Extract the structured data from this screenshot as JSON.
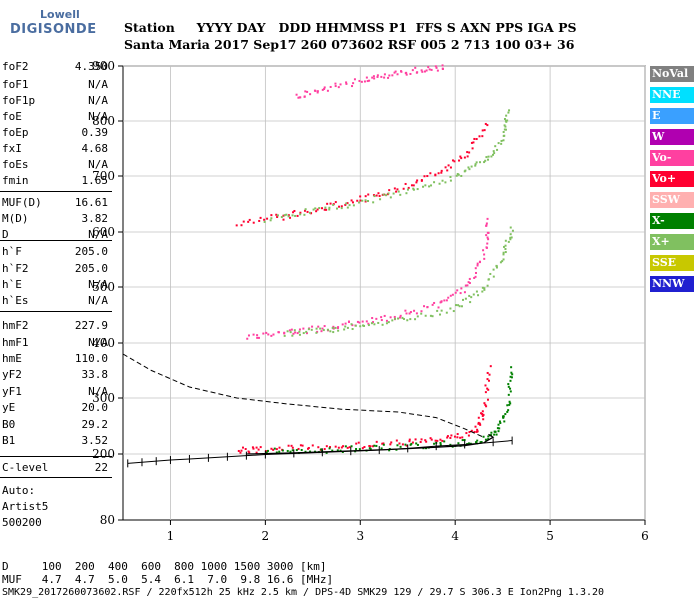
{
  "logo": {
    "top": "Lowell",
    "bottom": "DIGISONDE"
  },
  "header": {
    "row1": "Station     YYYY DAY   DDD HHMMSS P1  FFS S AXN PPS IGA PS",
    "row2": "Santa Maria 2017 Sep17 260 073602 RSF 005 2 713 100 03+ 36"
  },
  "params": [
    {
      "name": "foF2",
      "value": "4.350"
    },
    {
      "name": "foF1",
      "value": "N/A"
    },
    {
      "name": "foF1p",
      "value": "N/A"
    },
    {
      "name": "foE",
      "value": "N/A"
    },
    {
      "name": "foEp",
      "value": "0.39"
    },
    {
      "name": "fxI",
      "value": "4.68"
    },
    {
      "name": "foEs",
      "value": "N/A"
    },
    {
      "name": "fmin",
      "value": "1.65"
    },
    {
      "name": "MUF(D)",
      "value": "16.61"
    },
    {
      "name": "M(D)",
      "value": "3.82"
    },
    {
      "name": "D",
      "value": "N/A"
    },
    {
      "name": "h`F",
      "value": "205.0"
    },
    {
      "name": "h`F2",
      "value": "205.0"
    },
    {
      "name": "h`E",
      "value": "N/A"
    },
    {
      "name": "h`Es",
      "value": "N/A"
    },
    {
      "name": "hmF2",
      "value": "227.9"
    },
    {
      "name": "hmF1",
      "value": "N/A"
    },
    {
      "name": "hmE",
      "value": "110.0"
    },
    {
      "name": "yF2",
      "value": "33.8"
    },
    {
      "name": "yF1",
      "value": "N/A"
    },
    {
      "name": "yE",
      "value": "20.0"
    },
    {
      "name": "B0",
      "value": "29.2"
    },
    {
      "name": "B1",
      "value": "3.52"
    },
    {
      "name": "C-level",
      "value": "22"
    }
  ],
  "auto": {
    "line1": "Auto:",
    "line2": "Artist5",
    "line3": "500200"
  },
  "legend": [
    {
      "label": "NoVal",
      "color": "#808080"
    },
    {
      "label": "NNE",
      "color": "#00e0ff"
    },
    {
      "label": "E",
      "color": "#3aa0ff"
    },
    {
      "label": "W",
      "color": "#b000b0"
    },
    {
      "label": "Vo-",
      "color": "#ff40a0"
    },
    {
      "label": "Vo+",
      "color": "#ff0030"
    },
    {
      "label": "SSW",
      "color": "#ffb0b0"
    },
    {
      "label": "X-",
      "color": "#008000"
    },
    {
      "label": "X+",
      "color": "#80c060"
    },
    {
      "label": "SSE",
      "color": "#c8c800"
    },
    {
      "label": "NNW",
      "color": "#2020d0"
    }
  ],
  "chart_data": {
    "type": "scatter",
    "xlim": [
      0.5,
      6
    ],
    "ylim": [
      80,
      900
    ],
    "x_ticks": [
      1,
      2,
      3,
      4,
      5,
      6
    ],
    "y_ticks": [
      80,
      200,
      300,
      400,
      500,
      600,
      700,
      800,
      900
    ],
    "grid": true,
    "series": [
      {
        "name": "Vo+",
        "color": "#ff0030",
        "x": [
          1.7,
          2.0,
          2.5,
          3.0,
          3.5,
          3.9,
          4.2,
          4.3,
          4.35
        ],
        "y": [
          208,
          210,
          213,
          217,
          222,
          228,
          240,
          280,
          360
        ]
      },
      {
        "name": "X-",
        "color": "#008000",
        "x": [
          2.0,
          2.5,
          3.0,
          3.5,
          4.0,
          4.3,
          4.45,
          4.55,
          4.58
        ],
        "y": [
          206,
          208,
          211,
          215,
          220,
          228,
          245,
          290,
          360
        ]
      },
      {
        "name": "Vo-",
        "color": "#ff40a0",
        "x": [
          1.8,
          2.2,
          2.6,
          3.0,
          3.4,
          3.8,
          4.1,
          4.3,
          4.35
        ],
        "y": [
          412,
          420,
          428,
          438,
          450,
          470,
          500,
          560,
          630
        ]
      },
      {
        "name": "X+",
        "color": "#80c060",
        "x": [
          2.2,
          2.6,
          3.0,
          3.5,
          4.0,
          4.3,
          4.5,
          4.6
        ],
        "y": [
          418,
          425,
          432,
          445,
          465,
          500,
          560,
          610
        ]
      },
      {
        "name": "Vo+",
        "color": "#ff0030",
        "x": [
          1.7,
          2.2,
          2.6,
          3.0,
          3.4,
          3.8,
          4.1,
          4.35
        ],
        "y": [
          618,
          630,
          645,
          660,
          680,
          705,
          740,
          800
        ]
      },
      {
        "name": "X+",
        "color": "#80c060",
        "x": [
          2.0,
          2.5,
          3.0,
          3.5,
          4.0,
          4.3,
          4.5,
          4.55
        ],
        "y": [
          625,
          640,
          655,
          675,
          700,
          730,
          770,
          820
        ]
      },
      {
        "name": "Vo-",
        "color": "#ff40a0",
        "x": [
          2.3,
          2.6,
          3.0,
          3.3,
          3.6,
          3.9
        ],
        "y": [
          845,
          860,
          875,
          885,
          895,
          900
        ]
      }
    ],
    "profile_dashed": {
      "x": [
        0.5,
        0.8,
        1.2,
        1.7,
        2.2,
        2.8,
        3.4,
        3.8,
        4.1,
        4.3
      ],
      "y": [
        380,
        350,
        320,
        300,
        290,
        280,
        275,
        265,
        245,
        230
      ]
    },
    "trace_solid": {
      "x": [
        1.8,
        2.3,
        2.8,
        3.3,
        3.8,
        4.1,
        4.3,
        4.4,
        4.35
      ],
      "y": [
        200,
        202,
        205,
        208,
        212,
        215,
        220,
        230,
        235
      ]
    },
    "trace_ticks": {
      "x": [
        0.55,
        0.7,
        0.85,
        1.0,
        1.2,
        1.4,
        1.6,
        1.8,
        2.0,
        2.3,
        2.6,
        2.9,
        3.2,
        3.5,
        3.8,
        4.1,
        4.4,
        4.6
      ],
      "y": [
        183,
        185,
        187,
        189,
        191,
        193,
        195,
        197,
        199,
        201,
        203,
        205,
        207,
        210,
        214,
        217,
        221,
        224
      ]
    }
  },
  "footer": {
    "row1": "D     100  200  400  600  800 1000 1500 3000 [km]",
    "row2": "MUF   4.7  4.7  5.0  5.4  6.1  7.0  9.8 16.6 [MHz]",
    "row3": "SMK29_2017260073602.RSF / 220fx512h 25 kHz 2.5 km / DPS-4D SMK29 129 / 29.7 S 306.3 E Ion2Png 1.3.20"
  }
}
